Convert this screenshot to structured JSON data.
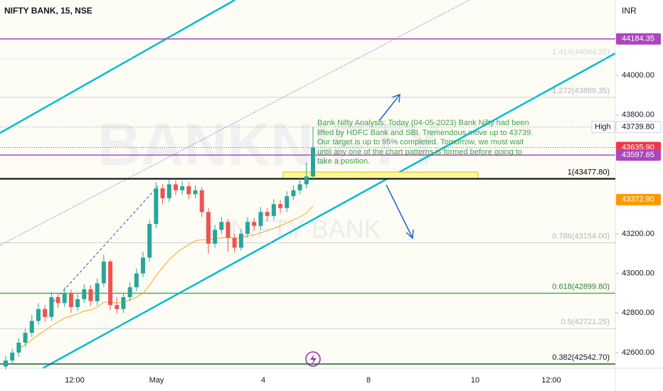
{
  "chart_data": {
    "type": "candlestick",
    "title": "NIFTY BANK, 15, NSE",
    "currency": "INR",
    "watermark": [
      "BANKNIFTY",
      "NIFTY BANK"
    ],
    "annotation": "Bank Nifty Analysis: Today (04-05-2023) Bank Nifty had been lifted by HDFC Bank and SBI. Tremendous move up to 43739. Our target is up to 95% completed. Tomorrow, we must wait until any one of the chart patterns is formed before going to take a position.",
    "x_axis_labels": [
      "12:00",
      "May",
      "4",
      "8",
      "10",
      "12:00"
    ],
    "ylim": [
      42521,
      44381
    ],
    "yticks": [
      {
        "value": 42600,
        "label": "42600.00"
      },
      {
        "value": 42800,
        "label": "42800.00"
      },
      {
        "value": 43000,
        "label": "43000.00"
      },
      {
        "value": 43200,
        "label": "43200.00"
      },
      {
        "value": 43800,
        "label": "43800.00"
      },
      {
        "value": 44000,
        "label": "44000.00"
      }
    ],
    "up_color": "#26a69a",
    "down_color": "#ef5350",
    "candles": {
      "open": [
        42530,
        42560,
        42600,
        42650,
        42700,
        42760,
        42820,
        42780,
        42880,
        42850,
        42900,
        42830,
        42870,
        42920,
        42860,
        42950,
        43060,
        42840,
        42820,
        42880,
        42930,
        43000,
        43080,
        43250,
        43430,
        43380,
        43450,
        43420,
        43440,
        43400,
        43420,
        43310,
        43150,
        43220,
        43260,
        43180,
        43130,
        43200,
        43260,
        43240,
        43310,
        43290,
        43350,
        43330,
        43390,
        43420,
        43450,
        43490
      ],
      "high": [
        42585,
        42620,
        42675,
        42720,
        42790,
        42850,
        42840,
        42905,
        42900,
        42930,
        42920,
        42895,
        42945,
        42940,
        42975,
        43095,
        43070,
        42880,
        42900,
        42955,
        43025,
        43110,
        43270,
        43460,
        43450,
        43475,
        43470,
        43465,
        43460,
        43445,
        43435,
        43330,
        43245,
        43285,
        43275,
        43200,
        43225,
        43285,
        43280,
        43335,
        43330,
        43375,
        43370,
        43415,
        43445,
        43480,
        43560,
        43739.8
      ],
      "low": [
        42515,
        42545,
        42580,
        42630,
        42680,
        42740,
        42755,
        42760,
        42825,
        42830,
        42800,
        42810,
        42850,
        42835,
        42840,
        42930,
        42815,
        42795,
        42800,
        42860,
        42910,
        42980,
        43060,
        43230,
        43350,
        43360,
        43395,
        43400,
        43375,
        43380,
        43285,
        43100,
        43130,
        43200,
        43110,
        43105,
        43115,
        43180,
        43215,
        43220,
        43265,
        43270,
        43305,
        43310,
        43370,
        43400,
        43430,
        43470
      ],
      "close": [
        42560,
        42600,
        42650,
        42700,
        42760,
        42820,
        42780,
        42880,
        42850,
        42900,
        42830,
        42870,
        42920,
        42860,
        42950,
        43060,
        42840,
        42820,
        42880,
        42930,
        43000,
        43080,
        43250,
        43430,
        43380,
        43450,
        43420,
        43440,
        43400,
        43420,
        43310,
        43150,
        43220,
        43260,
        43180,
        43130,
        43200,
        43260,
        43240,
        43310,
        43290,
        43350,
        43330,
        43390,
        43420,
        43450,
        43490,
        43635.9
      ]
    },
    "ema": {
      "color": "#f5a623",
      "values": [
        null,
        null,
        42620,
        42640,
        42665,
        42690,
        42710,
        42735,
        42755,
        42775,
        42785,
        42795,
        42810,
        42815,
        42830,
        42855,
        42855,
        42850,
        42855,
        42865,
        42880,
        42900,
        42940,
        42990,
        43030,
        43070,
        43100,
        43125,
        43145,
        43165,
        43170,
        43170,
        43175,
        43180,
        43180,
        43178,
        43180,
        43190,
        43195,
        43205,
        43215,
        43228,
        43240,
        43255,
        43270,
        43285,
        43305,
        43340
      ]
    },
    "fib_levels": [
      {
        "label": "1.414(44084.35)",
        "value": 44084.35,
        "color": "#d1d4dc"
      },
      {
        "label": "1.272(43889.35)",
        "value": 43889.35,
        "color": "#b2b5be"
      },
      {
        "label": "1(43477.80)",
        "value": 43477.8,
        "color": "#000000"
      },
      {
        "label": "0.786(43154.00)",
        "value": 43154,
        "color": "#b2b5be"
      },
      {
        "label": "0.618(42899.80)",
        "value": 42899.8,
        "color": "#4caf50"
      },
      {
        "label": "0.5(42721.25)",
        "value": 42721.25,
        "color": "#b2b5be"
      },
      {
        "label": "0.382(42542.70)",
        "value": 42542.7,
        "color": "#1b5e20"
      }
    ],
    "price_tags": [
      {
        "label": "44184.35",
        "value": 44184.35,
        "color": "#ab47bc",
        "line": "solid"
      },
      {
        "label": "43739.80",
        "value": 43739.8,
        "color": "#ffffff",
        "line": "dotted",
        "name": "High"
      },
      {
        "label": "43635.90",
        "value": 43635.9,
        "color": "#f23645",
        "line": "dotted"
      },
      {
        "label": "43597.65",
        "value": 43597.65,
        "color": "#ab47bc",
        "line": "solid"
      },
      {
        "label": "43372.90",
        "value": 43372.9,
        "color": "#ff9800",
        "line": "none"
      }
    ]
  }
}
